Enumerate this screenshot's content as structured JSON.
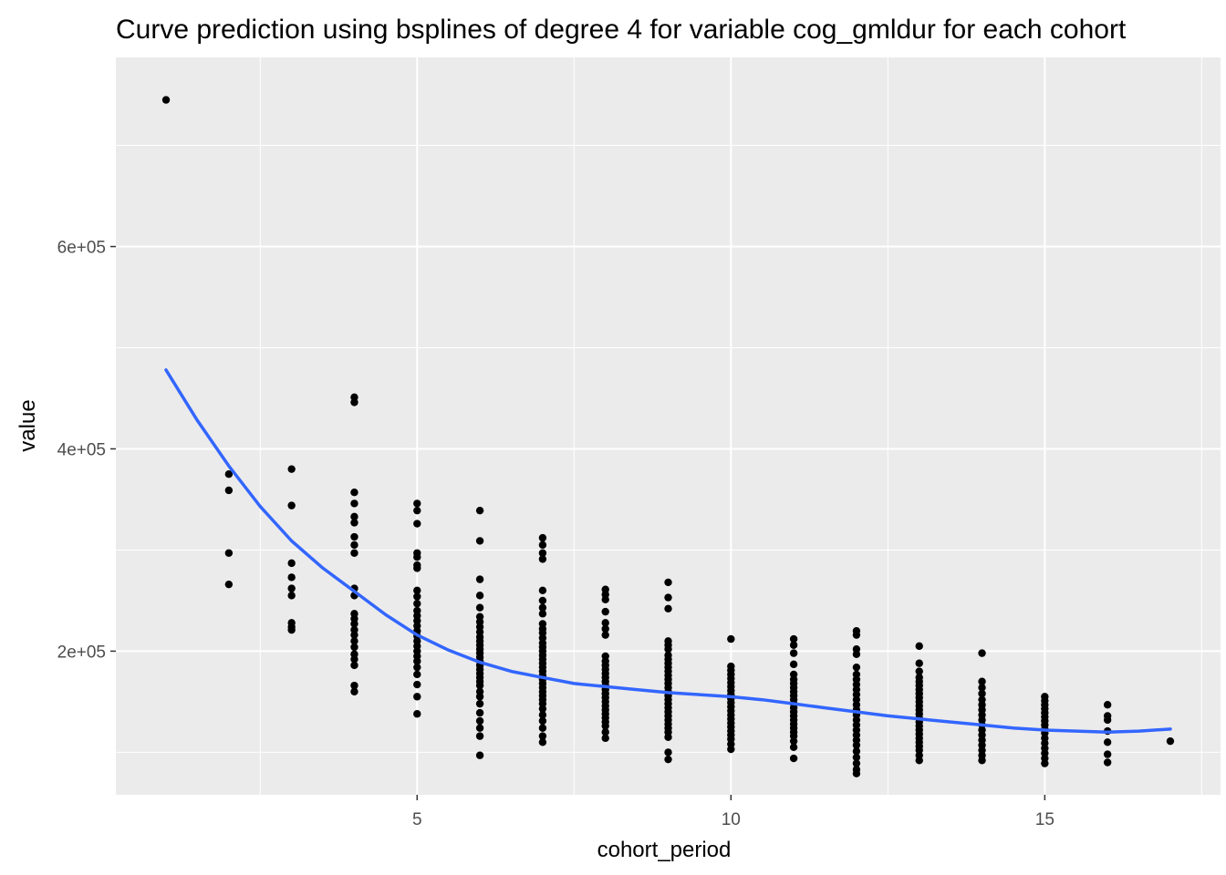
{
  "chart_data": {
    "type": "scatter",
    "title": "Curve prediction using bsplines of degree 4  for variable cog_gmldur for each cohort",
    "xlabel": "cohort_period",
    "ylabel": "value",
    "xlim": [
      0.2,
      17.8
    ],
    "ylim": [
      58000,
      787000
    ],
    "x_ticks": [
      {
        "value": 5,
        "label": "5"
      },
      {
        "value": 10,
        "label": "10"
      },
      {
        "value": 15,
        "label": "15"
      }
    ],
    "y_ticks": [
      {
        "value": 200000,
        "label": "2e+05"
      },
      {
        "value": 400000,
        "label": "4e+05"
      },
      {
        "value": 600000,
        "label": "6e+05"
      }
    ],
    "x_minor": [
      2.5,
      7.5,
      12.5,
      17.5
    ],
    "y_minor": [
      100000,
      300000,
      500000,
      700000
    ],
    "grid": true,
    "colors": {
      "panel": "#ebebeb",
      "grid": "#ffffff",
      "points": "#000000",
      "curve": "#3366ff"
    },
    "points": [
      {
        "x": 1,
        "ys": [
          745000
        ]
      },
      {
        "x": 2,
        "ys": [
          375000,
          359000,
          297000,
          266000
        ]
      },
      {
        "x": 3,
        "ys": [
          380000,
          344000,
          287000,
          273000,
          262000,
          255000,
          228000,
          224000,
          221000
        ]
      },
      {
        "x": 4,
        "ys": [
          451000,
          446000,
          357000,
          346000,
          333000,
          327000,
          313000,
          305000,
          297000,
          262000,
          255000,
          237000,
          232000,
          227000,
          221000,
          216000,
          210000,
          204000,
          197000,
          192000,
          186000,
          166000,
          160000
        ]
      },
      {
        "x": 5,
        "ys": [
          346000,
          339000,
          326000,
          297000,
          293000,
          285000,
          282000,
          260000,
          254000,
          247000,
          240000,
          235000,
          230000,
          225000,
          220000,
          215000,
          210000,
          205000,
          200000,
          195000,
          190000,
          184000,
          177000,
          167000,
          155000,
          138000
        ]
      },
      {
        "x": 6,
        "ys": [
          339000,
          309000,
          271000,
          255000,
          243000,
          234000,
          229000,
          224000,
          219000,
          214000,
          210000,
          206000,
          202000,
          198000,
          194000,
          190000,
          186000,
          182000,
          178000,
          174000,
          170000,
          166000,
          160000,
          155000,
          148000,
          139000,
          131000,
          124000,
          116000,
          97000
        ]
      },
      {
        "x": 7,
        "ys": [
          312000,
          305000,
          297000,
          291000,
          260000,
          250000,
          243000,
          237000,
          227000,
          222000,
          218000,
          213000,
          208000,
          204000,
          200000,
          196000,
          192000,
          188000,
          184000,
          180000,
          176000,
          172000,
          168000,
          164000,
          160000,
          156000,
          152000,
          148000,
          143000,
          137000,
          131000,
          124000,
          116000,
          110000
        ]
      },
      {
        "x": 8,
        "ys": [
          261000,
          256000,
          251000,
          239000,
          228000,
          222000,
          216000,
          195000,
          190000,
          186000,
          182000,
          178000,
          174000,
          170000,
          166000,
          162000,
          158000,
          154000,
          150000,
          146000,
          142000,
          138000,
          134000,
          130000,
          126000,
          120000,
          114000
        ]
      },
      {
        "x": 9,
        "ys": [
          268000,
          253000,
          242000,
          210000,
          206000,
          202000,
          196000,
          192000,
          188000,
          184000,
          180000,
          176000,
          172000,
          168000,
          164000,
          160000,
          156000,
          152000,
          148000,
          144000,
          140000,
          136000,
          132000,
          128000,
          124000,
          120000,
          115000,
          100000,
          93000
        ]
      },
      {
        "x": 10,
        "ys": [
          212000,
          185000,
          181000,
          177000,
          173000,
          169000,
          165000,
          161000,
          157000,
          153000,
          149000,
          145000,
          141000,
          137000,
          133000,
          129000,
          125000,
          121000,
          117000,
          113000,
          108000,
          103000
        ]
      },
      {
        "x": 11,
        "ys": [
          212000,
          206000,
          198000,
          187000,
          177000,
          172000,
          168000,
          164000,
          160000,
          156000,
          152000,
          148000,
          144000,
          140000,
          136000,
          132000,
          128000,
          124000,
          120000,
          116000,
          111000,
          105000,
          94000
        ]
      },
      {
        "x": 12,
        "ys": [
          220000,
          216000,
          202000,
          197000,
          184000,
          177000,
          172000,
          167000,
          162000,
          157000,
          152000,
          147000,
          142000,
          137000,
          132000,
          127000,
          122000,
          117000,
          112000,
          107000,
          101000,
          95000,
          89000,
          83000,
          79000
        ]
      },
      {
        "x": 13,
        "ys": [
          205000,
          188000,
          180000,
          174000,
          170000,
          166000,
          162000,
          158000,
          154000,
          150000,
          146000,
          142000,
          138000,
          134000,
          130000,
          126000,
          122000,
          118000,
          114000,
          110000,
          106000,
          102000,
          97000,
          92000
        ]
      },
      {
        "x": 14,
        "ys": [
          198000,
          170000,
          164000,
          158000,
          152000,
          147000,
          142000,
          137000,
          132000,
          127000,
          122000,
          117000,
          112000,
          107000,
          102000,
          97000,
          92000
        ]
      },
      {
        "x": 15,
        "ys": [
          155000,
          151000,
          147000,
          143000,
          139000,
          135000,
          131000,
          127000,
          123000,
          119000,
          114000,
          109000,
          104000,
          99000,
          94000,
          89000
        ]
      },
      {
        "x": 16,
        "ys": [
          147000,
          136000,
          132000,
          121000,
          110000,
          98000,
          90000
        ]
      },
      {
        "x": 17,
        "ys": [
          111000
        ]
      }
    ],
    "curve": {
      "name": "bspline prediction",
      "x": [
        1,
        1.5,
        2,
        2.5,
        3,
        3.5,
        4,
        4.5,
        5,
        5.5,
        6,
        6.5,
        7,
        7.5,
        8,
        8.5,
        9,
        9.5,
        10,
        10.5,
        11,
        11.5,
        12,
        12.5,
        13,
        13.5,
        14,
        14.5,
        15,
        15.5,
        16,
        16.5,
        17
      ],
      "y": [
        478000,
        428000,
        383000,
        343000,
        309000,
        282000,
        259000,
        236000,
        216000,
        201000,
        189000,
        180000,
        174000,
        168000,
        165000,
        162000,
        159000,
        157000,
        155000,
        152000,
        148000,
        144000,
        140000,
        136000,
        133000,
        130000,
        127000,
        124000,
        122000,
        121000,
        120000,
        121000,
        123000
      ]
    }
  }
}
